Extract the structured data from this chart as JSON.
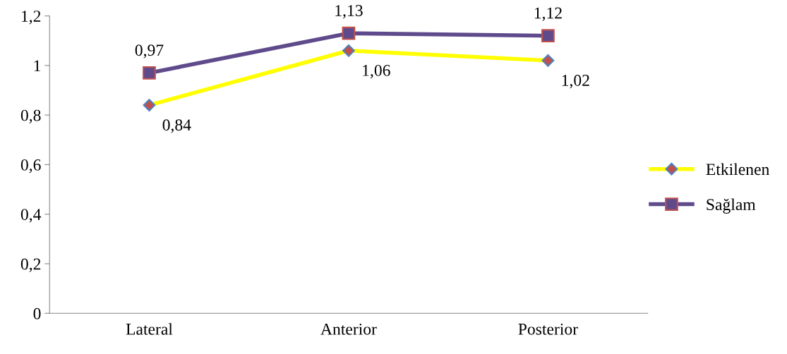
{
  "chart_data": {
    "type": "line",
    "categories": [
      "Lateral",
      "Anterior",
      "Posterior"
    ],
    "series": [
      {
        "name": "Etkilenen",
        "color": "#ffff00",
        "marker": "diamond",
        "values": [
          0.84,
          1.06,
          1.02
        ],
        "value_labels": [
          "0,84",
          "1,06",
          "1,02"
        ]
      },
      {
        "name": "Sağlam",
        "color": "#5f4b8b",
        "marker": "square",
        "values": [
          0.97,
          1.13,
          1.12
        ],
        "value_labels": [
          "0,97",
          "1,13",
          "1,12"
        ]
      }
    ],
    "ylim": [
      0,
      1.2
    ],
    "yticks": [
      {
        "value": 0,
        "label": "0"
      },
      {
        "value": 0.2,
        "label": "0,2"
      },
      {
        "value": 0.4,
        "label": "0,4"
      },
      {
        "value": 0.6,
        "label": "0,6"
      },
      {
        "value": 0.8,
        "label": "0,8"
      },
      {
        "value": 1,
        "label": "1"
      },
      {
        "value": 1.2,
        "label": "1,2"
      }
    ],
    "grid": false,
    "legend": "right",
    "line_style": "solid"
  }
}
